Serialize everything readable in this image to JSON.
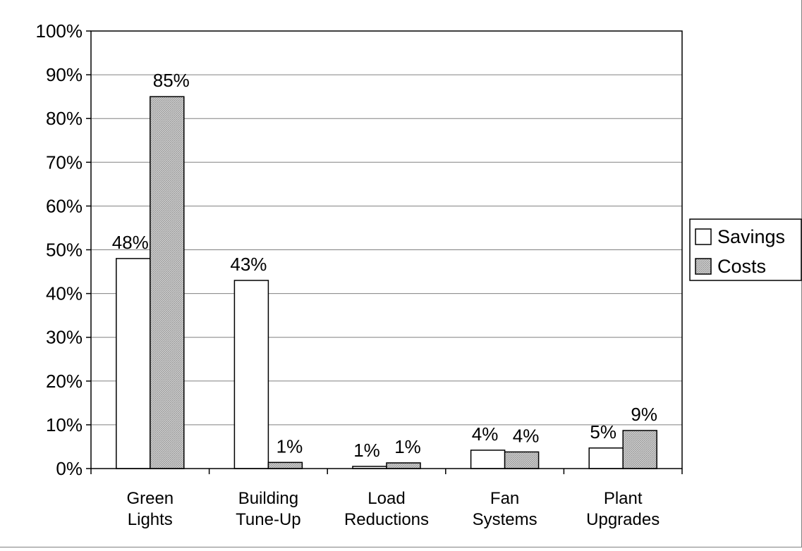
{
  "chart_data": {
    "type": "bar",
    "categories": [
      [
        "Green",
        "Lights"
      ],
      [
        "Building",
        "Tune-Up"
      ],
      [
        "Load",
        "Reductions"
      ],
      [
        "Fan",
        "Systems"
      ],
      [
        "Plant",
        "Upgrades"
      ]
    ],
    "series": [
      {
        "name": "Savings",
        "values": [
          48,
          43,
          0.5,
          4.2,
          4.7
        ],
        "labels": [
          "48%",
          "43%",
          "1%",
          "4%",
          "5%"
        ],
        "fill": "white"
      },
      {
        "name": "Costs",
        "values": [
          85,
          1.4,
          1.3,
          3.8,
          8.7
        ],
        "labels": [
          "85%",
          "1%",
          "1%",
          "4%",
          "9%"
        ],
        "fill": "hatched-gray"
      }
    ],
    "y_ticks": [
      "0%",
      "10%",
      "20%",
      "30%",
      "40%",
      "50%",
      "60%",
      "70%",
      "80%",
      "90%",
      "100%"
    ],
    "ylim": [
      0,
      100
    ],
    "grid": true,
    "legend_position": "right",
    "title": "",
    "xlabel": "",
    "ylabel": ""
  }
}
